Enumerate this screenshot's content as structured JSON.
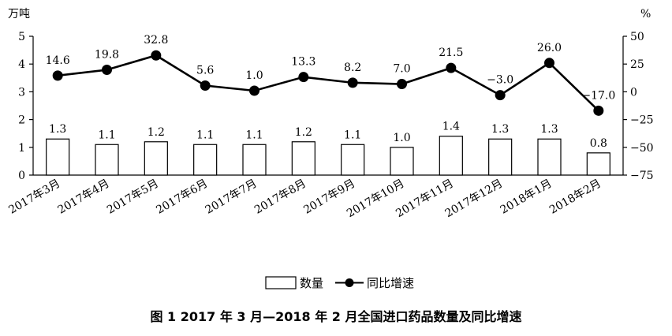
{
  "chart_data": {
    "type": "bar",
    "categories": [
      "2017年3月",
      "2017年4月",
      "2017年5月",
      "2017年6月",
      "2017年7月",
      "2017年8月",
      "2017年9月",
      "2017年10月",
      "2017年11月",
      "2017年12月",
      "2018年1月",
      "2018年2月"
    ],
    "series": [
      {
        "name": "数量",
        "type": "bar",
        "axis": "left",
        "values": [
          1.3,
          1.1,
          1.2,
          1.1,
          1.1,
          1.2,
          1.1,
          1.0,
          1.4,
          1.3,
          1.3,
          0.8
        ],
        "labels": [
          "1.3",
          "1.1",
          "1.2",
          "1.1",
          "1.1",
          "1.2",
          "1.1",
          "1.0",
          "1.4",
          "1.3",
          "1.3",
          "0.8"
        ]
      },
      {
        "name": "同比增速",
        "type": "line",
        "axis": "right",
        "values": [
          14.6,
          19.8,
          32.8,
          5.6,
          1.0,
          13.3,
          8.2,
          7.0,
          21.5,
          -3.0,
          26.0,
          -17.0
        ],
        "labels": [
          "14.6",
          "19.8",
          "32.8",
          "5.6",
          "1.0",
          "13.3",
          "8.2",
          "7.0",
          "21.5",
          "−3.0",
          "26.0",
          "−17.0"
        ]
      }
    ],
    "left_axis": {
      "unit": "万吨",
      "ylim": [
        0,
        5
      ],
      "ticks": [
        "0",
        "1",
        "2",
        "3",
        "4",
        "5"
      ]
    },
    "right_axis": {
      "unit": "%",
      "ylim": [
        -75,
        50
      ],
      "ticks": [
        "50",
        "25",
        "0",
        "−25",
        "−50",
        "−75"
      ]
    },
    "legend": {
      "placement": "bottom"
    },
    "grid": false,
    "title": "图 1   2017 年 3 月—2018 年 2 月全国进口药品数量及同比增速"
  }
}
